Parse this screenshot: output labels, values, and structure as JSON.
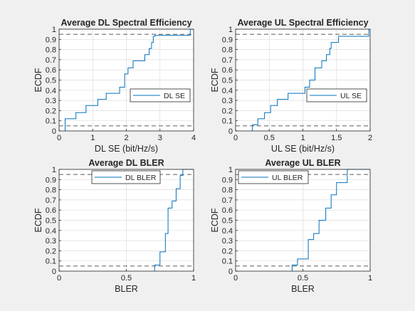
{
  "chart_data": [
    {
      "type": "line",
      "title": "Average DL Spectral Efficiency",
      "xlabel": "DL SE (bit/Hz/s)",
      "ylabel": "ECDF",
      "xlim": [
        0,
        4
      ],
      "ylim": [
        0,
        1
      ],
      "xticks": [
        "0",
        "1",
        "2",
        "3",
        "4"
      ],
      "yticks": [
        "0",
        "0.1",
        "0.2",
        "0.3",
        "0.4",
        "0.5",
        "0.6",
        "0.7",
        "0.8",
        "0.9",
        "1"
      ],
      "grid": true,
      "legend": {
        "position": "lower-right"
      },
      "reference_lines": [
        0.05,
        0.95
      ],
      "series": [
        {
          "name": "DL SE",
          "color": "#0072bd",
          "x": [
            0.18,
            0.18,
            0.5,
            0.5,
            0.8,
            0.8,
            1.15,
            1.15,
            1.4,
            1.4,
            1.8,
            1.8,
            1.95,
            1.95,
            2.05,
            2.05,
            2.2,
            2.2,
            2.55,
            2.55,
            2.68,
            2.68,
            2.75,
            2.75,
            2.8,
            2.8,
            2.85,
            2.85,
            3.9,
            3.9,
            4.0
          ],
          "y": [
            0,
            0.12,
            0.12,
            0.18,
            0.18,
            0.25,
            0.25,
            0.31,
            0.31,
            0.37,
            0.37,
            0.43,
            0.43,
            0.56,
            0.56,
            0.62,
            0.62,
            0.69,
            0.69,
            0.75,
            0.75,
            0.81,
            0.81,
            0.87,
            0.87,
            0.93,
            0.93,
            0.94,
            0.94,
            1.0,
            1.0
          ]
        }
      ]
    },
    {
      "type": "line",
      "title": "Average UL Spectral Efficiency",
      "xlabel": "UL SE (bit/Hz/s)",
      "ylabel": "ECDF",
      "xlim": [
        0,
        2
      ],
      "ylim": [
        0,
        1
      ],
      "xticks": [
        "0",
        "0.5",
        "1",
        "1.5",
        "2"
      ],
      "yticks": [
        "0",
        "0.1",
        "0.2",
        "0.3",
        "0.4",
        "0.5",
        "0.6",
        "0.7",
        "0.8",
        "0.9",
        "1"
      ],
      "grid": true,
      "legend": {
        "position": "lower-right"
      },
      "reference_lines": [
        0.05,
        0.95
      ],
      "series": [
        {
          "name": "UL SE",
          "color": "#0072bd",
          "x": [
            0.25,
            0.25,
            0.33,
            0.33,
            0.43,
            0.43,
            0.52,
            0.52,
            0.62,
            0.62,
            0.78,
            0.78,
            1.03,
            1.03,
            1.1,
            1.1,
            1.18,
            1.18,
            1.28,
            1.28,
            1.35,
            1.35,
            1.4,
            1.4,
            1.42,
            1.42,
            1.53,
            1.53,
            1.98,
            1.98,
            2.0
          ],
          "y": [
            0,
            0.06,
            0.06,
            0.12,
            0.12,
            0.18,
            0.18,
            0.25,
            0.25,
            0.31,
            0.31,
            0.37,
            0.37,
            0.43,
            0.43,
            0.5,
            0.5,
            0.62,
            0.62,
            0.69,
            0.69,
            0.75,
            0.75,
            0.81,
            0.81,
            0.87,
            0.87,
            0.93,
            0.93,
            1.0,
            1.0
          ]
        }
      ]
    },
    {
      "type": "line",
      "title": "Average DL BLER",
      "xlabel": "BLER",
      "ylabel": "ECDF",
      "xlim": [
        0,
        1
      ],
      "ylim": [
        0,
        1
      ],
      "xticks": [
        "0",
        "0.5",
        "1"
      ],
      "yticks": [
        "0",
        "0.1",
        "0.2",
        "0.3",
        "0.4",
        "0.5",
        "0.6",
        "0.7",
        "0.8",
        "0.9",
        "1"
      ],
      "grid": true,
      "legend": {
        "position": "top"
      },
      "reference_lines": [
        0.05,
        0.95
      ],
      "series": [
        {
          "name": "DL BLER",
          "color": "#0072bd",
          "x": [
            0.71,
            0.71,
            0.75,
            0.75,
            0.79,
            0.79,
            0.81,
            0.81,
            0.84,
            0.84,
            0.87,
            0.87,
            0.9,
            0.9,
            0.92,
            0.92,
            0.97,
            1.0
          ],
          "y": [
            0,
            0.06,
            0.06,
            0.19,
            0.19,
            0.37,
            0.37,
            0.62,
            0.62,
            0.69,
            0.69,
            0.81,
            0.81,
            0.94,
            0.94,
            1.0,
            1.0,
            1.0
          ]
        }
      ]
    },
    {
      "type": "line",
      "title": "Average UL BLER",
      "xlabel": "BLER",
      "ylabel": "ECDF",
      "xlim": [
        0,
        1
      ],
      "ylim": [
        0,
        1
      ],
      "xticks": [
        "0",
        "0.5",
        "1"
      ],
      "yticks": [
        "0",
        "0.1",
        "0.2",
        "0.3",
        "0.4",
        "0.5",
        "0.6",
        "0.7",
        "0.8",
        "0.9",
        "1"
      ],
      "grid": true,
      "legend": {
        "position": "top-left"
      },
      "reference_lines": [
        0.05,
        0.95
      ],
      "series": [
        {
          "name": "UL BLER",
          "color": "#0072bd",
          "x": [
            0.42,
            0.42,
            0.46,
            0.46,
            0.54,
            0.54,
            0.58,
            0.58,
            0.62,
            0.62,
            0.67,
            0.67,
            0.71,
            0.71,
            0.75,
            0.75,
            0.83,
            0.83,
            1.0
          ],
          "y": [
            0,
            0.06,
            0.06,
            0.12,
            0.12,
            0.31,
            0.31,
            0.37,
            0.37,
            0.5,
            0.5,
            0.62,
            0.62,
            0.75,
            0.75,
            0.87,
            0.87,
            1.0,
            1.0
          ]
        }
      ]
    }
  ]
}
